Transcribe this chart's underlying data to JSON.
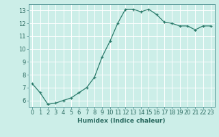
{
  "x": [
    0,
    1,
    2,
    3,
    4,
    5,
    6,
    7,
    8,
    9,
    10,
    11,
    12,
    13,
    14,
    15,
    16,
    17,
    18,
    19,
    20,
    21,
    22,
    23
  ],
  "y": [
    7.3,
    6.6,
    5.7,
    5.8,
    6.0,
    6.2,
    6.6,
    7.0,
    7.8,
    9.4,
    10.6,
    12.0,
    13.1,
    13.1,
    12.9,
    13.1,
    12.7,
    12.1,
    12.0,
    11.8,
    11.8,
    11.5,
    11.8,
    11.8
  ],
  "xlabel": "Humidex (Indice chaleur)",
  "bg_color": "#cceee8",
  "line_color": "#2a7a6a",
  "grid_color": "#ffffff",
  "ylim": [
    5.5,
    13.5
  ],
  "xlim": [
    -0.5,
    23.5
  ],
  "yticks": [
    6,
    7,
    8,
    9,
    10,
    11,
    12,
    13
  ],
  "xticks": [
    0,
    1,
    2,
    3,
    4,
    5,
    6,
    7,
    8,
    9,
    10,
    11,
    12,
    13,
    14,
    15,
    16,
    17,
    18,
    19,
    20,
    21,
    22,
    23
  ],
  "tick_color": "#2a6a60",
  "label_fontsize": 6.0,
  "xlabel_fontsize": 6.5
}
